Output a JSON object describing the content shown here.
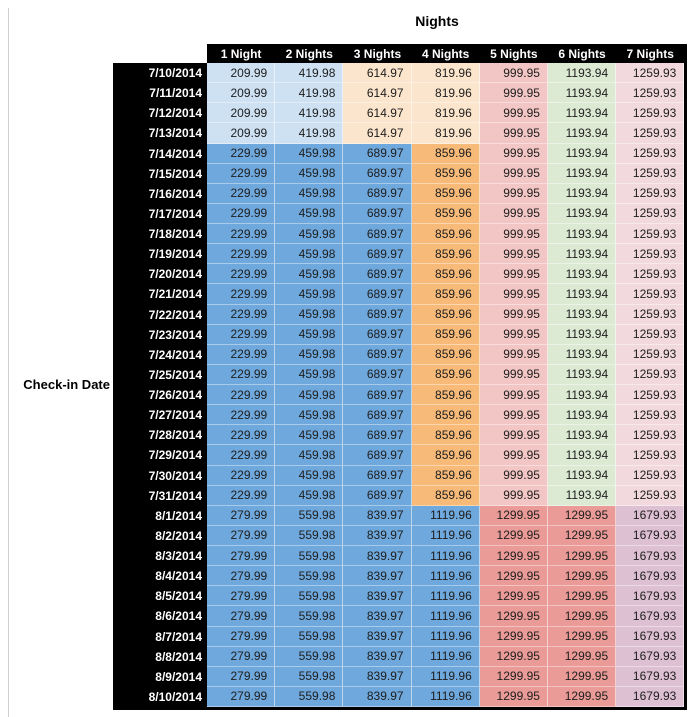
{
  "chart_data": {
    "type": "table",
    "title": "Nights",
    "row_axis_label": "Check-in Date",
    "columns": [
      "1 Night",
      "2 Nights",
      "3 Nights",
      "4 Nights",
      "5 Nights",
      "6 Nights",
      "7 Nights"
    ],
    "palette": {
      "blue": "#6FA8DC",
      "lightblue": "#CEE1F2",
      "lightorange": "#FBE5CD",
      "orange": "#F7BA79",
      "lightred": "#F2C6C4",
      "lightgreen": "#DCEAD4",
      "lightpink": "#F1D9DE",
      "salmon": "#EA9B97",
      "mauve": "#DEC0D3",
      "header_bg": "#000000",
      "header_text": "#FFFFFF"
    },
    "band_colors": {
      "early": [
        "lightblue",
        "lightblue",
        "lightorange",
        "lightorange",
        "lightred",
        "lightgreen",
        "lightpink"
      ],
      "mid": [
        "blue",
        "blue",
        "blue",
        "orange",
        "lightred",
        "lightgreen",
        "lightpink"
      ],
      "late": [
        "blue",
        "blue",
        "blue",
        "blue",
        "salmon",
        "salmon",
        "mauve"
      ]
    },
    "rows": [
      {
        "date": "7/10/2014",
        "band": "early",
        "values": [
          "209.99",
          "419.98",
          "614.97",
          "819.96",
          "999.95",
          "1193.94",
          "1259.93"
        ]
      },
      {
        "date": "7/11/2014",
        "band": "early",
        "values": [
          "209.99",
          "419.98",
          "614.97",
          "819.96",
          "999.95",
          "1193.94",
          "1259.93"
        ]
      },
      {
        "date": "7/12/2014",
        "band": "early",
        "values": [
          "209.99",
          "419.98",
          "614.97",
          "819.96",
          "999.95",
          "1193.94",
          "1259.93"
        ]
      },
      {
        "date": "7/13/2014",
        "band": "early",
        "values": [
          "209.99",
          "419.98",
          "614.97",
          "819.96",
          "999.95",
          "1193.94",
          "1259.93"
        ]
      },
      {
        "date": "7/14/2014",
        "band": "mid",
        "values": [
          "229.99",
          "459.98",
          "689.97",
          "859.96",
          "999.95",
          "1193.94",
          "1259.93"
        ]
      },
      {
        "date": "7/15/2014",
        "band": "mid",
        "values": [
          "229.99",
          "459.98",
          "689.97",
          "859.96",
          "999.95",
          "1193.94",
          "1259.93"
        ]
      },
      {
        "date": "7/16/2014",
        "band": "mid",
        "values": [
          "229.99",
          "459.98",
          "689.97",
          "859.96",
          "999.95",
          "1193.94",
          "1259.93"
        ]
      },
      {
        "date": "7/17/2014",
        "band": "mid",
        "values": [
          "229.99",
          "459.98",
          "689.97",
          "859.96",
          "999.95",
          "1193.94",
          "1259.93"
        ]
      },
      {
        "date": "7/18/2014",
        "band": "mid",
        "values": [
          "229.99",
          "459.98",
          "689.97",
          "859.96",
          "999.95",
          "1193.94",
          "1259.93"
        ]
      },
      {
        "date": "7/19/2014",
        "band": "mid",
        "values": [
          "229.99",
          "459.98",
          "689.97",
          "859.96",
          "999.95",
          "1193.94",
          "1259.93"
        ]
      },
      {
        "date": "7/20/2014",
        "band": "mid",
        "values": [
          "229.99",
          "459.98",
          "689.97",
          "859.96",
          "999.95",
          "1193.94",
          "1259.93"
        ]
      },
      {
        "date": "7/21/2014",
        "band": "mid",
        "values": [
          "229.99",
          "459.98",
          "689.97",
          "859.96",
          "999.95",
          "1193.94",
          "1259.93"
        ]
      },
      {
        "date": "7/22/2014",
        "band": "mid",
        "values": [
          "229.99",
          "459.98",
          "689.97",
          "859.96",
          "999.95",
          "1193.94",
          "1259.93"
        ]
      },
      {
        "date": "7/23/2014",
        "band": "mid",
        "values": [
          "229.99",
          "459.98",
          "689.97",
          "859.96",
          "999.95",
          "1193.94",
          "1259.93"
        ]
      },
      {
        "date": "7/24/2014",
        "band": "mid",
        "values": [
          "229.99",
          "459.98",
          "689.97",
          "859.96",
          "999.95",
          "1193.94",
          "1259.93"
        ]
      },
      {
        "date": "7/25/2014",
        "band": "mid",
        "values": [
          "229.99",
          "459.98",
          "689.97",
          "859.96",
          "999.95",
          "1193.94",
          "1259.93"
        ]
      },
      {
        "date": "7/26/2014",
        "band": "mid",
        "values": [
          "229.99",
          "459.98",
          "689.97",
          "859.96",
          "999.95",
          "1193.94",
          "1259.93"
        ]
      },
      {
        "date": "7/27/2014",
        "band": "mid",
        "values": [
          "229.99",
          "459.98",
          "689.97",
          "859.96",
          "999.95",
          "1193.94",
          "1259.93"
        ]
      },
      {
        "date": "7/28/2014",
        "band": "mid",
        "values": [
          "229.99",
          "459.98",
          "689.97",
          "859.96",
          "999.95",
          "1193.94",
          "1259.93"
        ]
      },
      {
        "date": "7/29/2014",
        "band": "mid",
        "values": [
          "229.99",
          "459.98",
          "689.97",
          "859.96",
          "999.95",
          "1193.94",
          "1259.93"
        ]
      },
      {
        "date": "7/30/2014",
        "band": "mid",
        "values": [
          "229.99",
          "459.98",
          "689.97",
          "859.96",
          "999.95",
          "1193.94",
          "1259.93"
        ]
      },
      {
        "date": "7/31/2014",
        "band": "mid",
        "values": [
          "229.99",
          "459.98",
          "689.97",
          "859.96",
          "999.95",
          "1193.94",
          "1259.93"
        ]
      },
      {
        "date": "8/1/2014",
        "band": "late",
        "values": [
          "279.99",
          "559.98",
          "839.97",
          "1119.96",
          "1299.95",
          "1299.95",
          "1679.93"
        ]
      },
      {
        "date": "8/2/2014",
        "band": "late",
        "values": [
          "279.99",
          "559.98",
          "839.97",
          "1119.96",
          "1299.95",
          "1299.95",
          "1679.93"
        ]
      },
      {
        "date": "8/3/2014",
        "band": "late",
        "values": [
          "279.99",
          "559.98",
          "839.97",
          "1119.96",
          "1299.95",
          "1299.95",
          "1679.93"
        ]
      },
      {
        "date": "8/4/2014",
        "band": "late",
        "values": [
          "279.99",
          "559.98",
          "839.97",
          "1119.96",
          "1299.95",
          "1299.95",
          "1679.93"
        ]
      },
      {
        "date": "8/5/2014",
        "band": "late",
        "values": [
          "279.99",
          "559.98",
          "839.97",
          "1119.96",
          "1299.95",
          "1299.95",
          "1679.93"
        ]
      },
      {
        "date": "8/6/2014",
        "band": "late",
        "values": [
          "279.99",
          "559.98",
          "839.97",
          "1119.96",
          "1299.95",
          "1299.95",
          "1679.93"
        ]
      },
      {
        "date": "8/7/2014",
        "band": "late",
        "values": [
          "279.99",
          "559.98",
          "839.97",
          "1119.96",
          "1299.95",
          "1299.95",
          "1679.93"
        ]
      },
      {
        "date": "8/8/2014",
        "band": "late",
        "values": [
          "279.99",
          "559.98",
          "839.97",
          "1119.96",
          "1299.95",
          "1299.95",
          "1679.93"
        ]
      },
      {
        "date": "8/9/2014",
        "band": "late",
        "values": [
          "279.99",
          "559.98",
          "839.97",
          "1119.96",
          "1299.95",
          "1299.95",
          "1679.93"
        ]
      },
      {
        "date": "8/10/2014",
        "band": "late",
        "values": [
          "279.99",
          "559.98",
          "839.97",
          "1119.96",
          "1299.95",
          "1299.95",
          "1679.93"
        ]
      }
    ]
  }
}
